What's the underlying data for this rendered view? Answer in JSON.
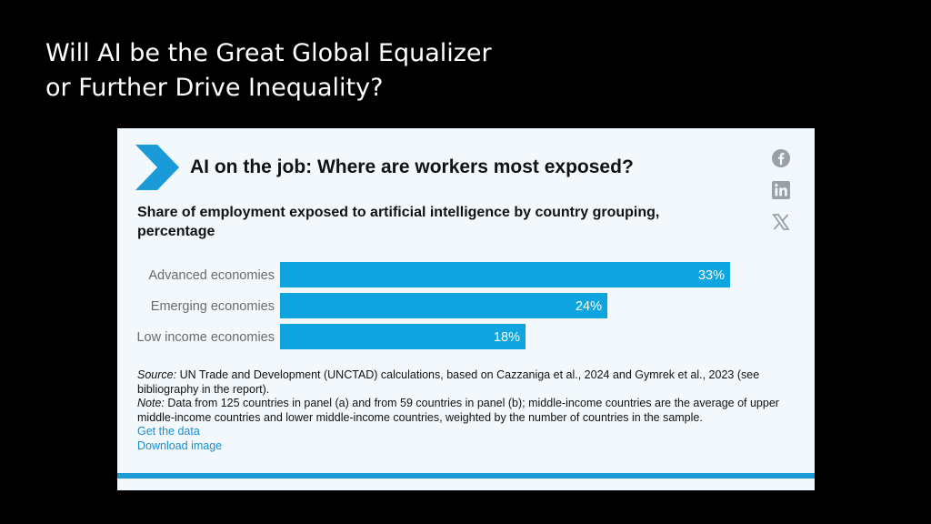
{
  "slide": {
    "title_line1": "Will AI be the Great Global Equalizer",
    "title_line2": "or Further Drive Inequality?"
  },
  "card": {
    "title": "AI on the job: Where are workers most exposed?",
    "subtitle": "Share of employment exposed to artificial intelligence by country grouping, percentage",
    "social_icons": [
      "facebook-icon",
      "linkedin-icon",
      "x-icon"
    ],
    "source_label": "Source:",
    "source_text": " UN Trade and Development (UNCTAD) calculations, based on Cazzaniga et al., 2024 and Gymrek et al., 2023 (see bibliography in the report).",
    "note_label": "Note:",
    "note_text": " Data from 125 countries in panel (a) and from 59 countries in panel (b); middle-income countries are the average of upper middle-income countries and lower middle-income countries, weighted by the number of countries in the sample.",
    "link_get_data": "Get the data",
    "link_download": "Download image",
    "accent_color": "#1a9ad6",
    "background_color": "#f3f8fc"
  },
  "chart_data": {
    "type": "bar",
    "orientation": "horizontal",
    "categories": [
      "Advanced economies",
      "Emerging economies",
      "Low income economies"
    ],
    "values": [
      33,
      24,
      18
    ],
    "value_suffix": "%",
    "bar_color": "#0ea5e0",
    "xlim": [
      0,
      35
    ],
    "grid": false,
    "legend": "none"
  }
}
